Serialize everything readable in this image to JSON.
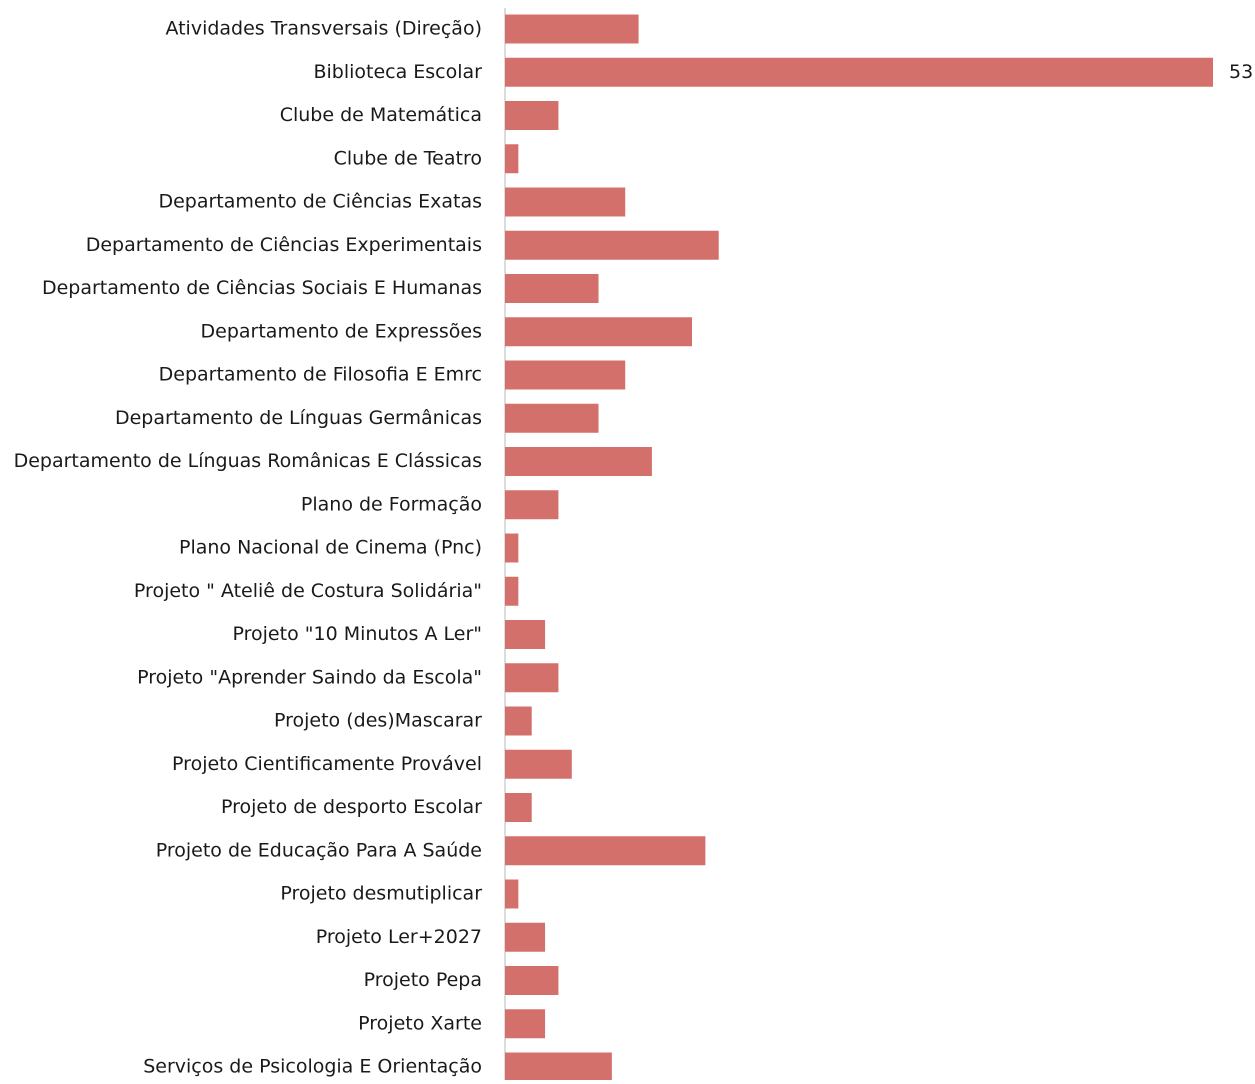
{
  "chart_data": {
    "type": "barh",
    "categories": [
      "Atividades Transversais (Direção)",
      "Biblioteca Escolar",
      "Clube de Matemática",
      "Clube de Teatro",
      "Departamento de Ciências Exatas",
      "Departamento de Ciências Experimentais",
      "Departamento de Ciências Sociais E Humanas",
      "Departamento de Expressões",
      "Departamento de Filosofia E Emrc",
      "Departamento de Línguas Germânicas",
      "Departamento de Línguas Românicas E Clássicas",
      "Plano de Formação",
      "Plano Nacional de Cinema (Pnc)",
      "Projeto \" Ateliê de Costura Solidária\"",
      "Projeto \"10 Minutos A Ler\"",
      "Projeto \"Aprender Saindo da Escola\"",
      "Projeto (des)Mascarar",
      "Projeto Cientificamente Provável",
      "Projeto de desporto Escolar",
      "Projeto de Educação Para A Saúde",
      "Projeto desmutiplicar",
      "Projeto Ler+2027",
      "Projeto Pepa",
      "Projeto Xarte",
      "Serviços de Psicologia E Orientação"
    ],
    "values": [
      10,
      53,
      4,
      1,
      9,
      16,
      7,
      14,
      9,
      7,
      11,
      4,
      1,
      1,
      3,
      4,
      2,
      5,
      2,
      15,
      1,
      3,
      4,
      3,
      8
    ],
    "value_labels": [
      null,
      "53",
      null,
      null,
      null,
      null,
      null,
      null,
      null,
      null,
      null,
      null,
      null,
      null,
      null,
      null,
      null,
      null,
      null,
      null,
      null,
      null,
      null,
      null,
      null
    ],
    "color": "#d4706b",
    "xlim": [
      0,
      53
    ]
  }
}
